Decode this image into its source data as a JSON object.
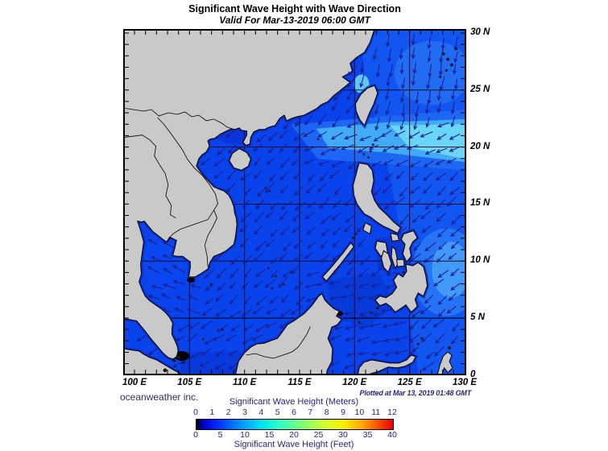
{
  "header": {
    "title": "Significant Wave Height with Wave Direction",
    "subtitle": "Valid For Mar-13-2019 06:00 GMT"
  },
  "axes": {
    "lon_labels": [
      "100 E",
      "105 E",
      "110 E",
      "115 E",
      "120 E",
      "125 E",
      "130 E"
    ],
    "lat_labels": [
      "30 N",
      "25 N",
      "20 N",
      "15 N",
      "10 N",
      "5 N",
      "0"
    ]
  },
  "footer": {
    "credit": "oceanweather inc.",
    "plotted": "Plotted at Mar 13, 2019 01:48 GMT"
  },
  "legend": {
    "meters_title": "Significant Wave Height (Meters)",
    "meters_ticks": [
      "0",
      "1",
      "2",
      "3",
      "4",
      "5",
      "6",
      "7",
      "8",
      "9",
      "10",
      "11",
      "12"
    ],
    "feet_title": "Significant Wave Height (Feet)",
    "feet_ticks": [
      "0",
      "5",
      "10",
      "15",
      "20",
      "25",
      "30",
      "35",
      "40"
    ]
  },
  "colors": {
    "land": "#C9C9C9",
    "coastline": "#000000",
    "sea_base": "#0843EC",
    "sea_east": "#1156F0",
    "wave_band_cyan": "#41ABF5",
    "wave_band_bright": "#69D6F8",
    "coastal_low_wave": "#0D2CC0",
    "arrow": "#1D1D8F",
    "legend_text": "#26267E",
    "grid": "#000000"
  },
  "chart_data": {
    "type": "map",
    "map_type": "significant_wave_height_field_with_wave_direction_vectors",
    "region": "South China Sea / Philippines / Western Pacific",
    "valid_time": "Mar-13-2019 06:00 GMT",
    "plotted_time": "Mar 13, 2019 01:48 GMT",
    "lon_range_deg_e": [
      100,
      130
    ],
    "lat_range_deg_n": [
      0,
      30
    ],
    "grid_interval_deg": 5,
    "colorbar": {
      "label_meters": "Significant Wave Height (Meters)",
      "meters_ticks": [
        0,
        1,
        2,
        3,
        4,
        5,
        6,
        7,
        8,
        9,
        10,
        11,
        12
      ],
      "label_feet": "Significant Wave Height (Feet)",
      "feet_ticks": [
        0,
        5,
        10,
        15,
        20,
        25,
        30,
        35,
        40
      ],
      "palette_stops": [
        "#000000",
        "#0000B8",
        "#001CFF",
        "#0064FF",
        "#00A8FF",
        "#00E4F0",
        "#2CFFC8",
        "#64FF90",
        "#9CFF58",
        "#D4FF28",
        "#F8EE00",
        "#FFAA00",
        "#FF5200",
        "#E60000"
      ]
    },
    "field_estimates_m": [
      {
        "region": "Taiwan Strait / Luzon Strait band (19-23N)",
        "value": 3.5
      },
      {
        "region": "East China Sea / NW Pacific (23-30N)",
        "value": 2
      },
      {
        "region": "Central South China Sea",
        "value": 1.5
      },
      {
        "region": "Philippine Sea (5-13N, 125-130E)",
        "value": 2.5
      },
      {
        "region": "Gulf of Thailand",
        "value": 1
      },
      {
        "region": "Coastal margins and sheltered seas",
        "value": 0.5
      }
    ],
    "wave_direction_summary": "Arrows point generally southwest across the South China Sea and Philippine Sea, southward in the East China Sea, west-southwest through the Taiwan and Luzon Straits, and west-northwest in the Gulf of Thailand"
  }
}
